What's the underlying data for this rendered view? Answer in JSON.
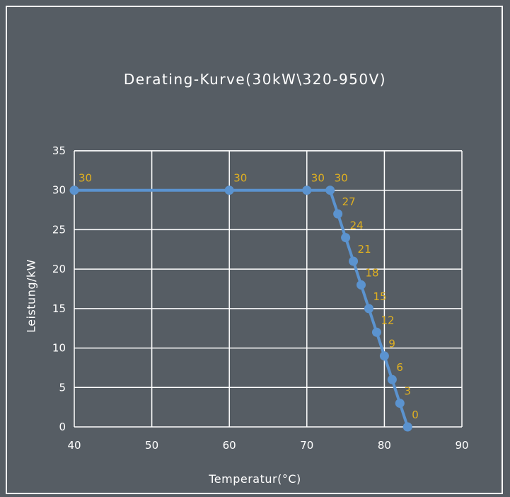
{
  "chart_data": {
    "type": "line",
    "title": "Derating-Kurve(30kW\\320-950V)",
    "xlabel": "Temperatur(°C)",
    "ylabel": "Leistung/kW",
    "xlim": [
      40,
      90
    ],
    "ylim": [
      0,
      35
    ],
    "x_ticks": [
      40,
      50,
      60,
      70,
      80,
      90
    ],
    "y_ticks": [
      0,
      5,
      10,
      15,
      20,
      25,
      30,
      35
    ],
    "grid": true,
    "series": [
      {
        "x": [
          40,
          60,
          70,
          73,
          74,
          75,
          76,
          77,
          78,
          79,
          80,
          81,
          82,
          83
        ],
        "y": [
          30,
          30,
          30,
          30,
          27,
          24,
          21,
          18,
          15,
          12,
          9,
          6,
          3,
          0
        ],
        "labels": [
          "30",
          "30",
          "30",
          "30",
          "27",
          "24",
          "21",
          "18",
          "15",
          "12",
          "9",
          "6",
          "3",
          "0"
        ]
      }
    ],
    "colors": {
      "background": "#565d64",
      "grid": "#ffffff",
      "line": "#5b93cf",
      "data_label": "#e0b020",
      "text": "#ffffff"
    }
  }
}
